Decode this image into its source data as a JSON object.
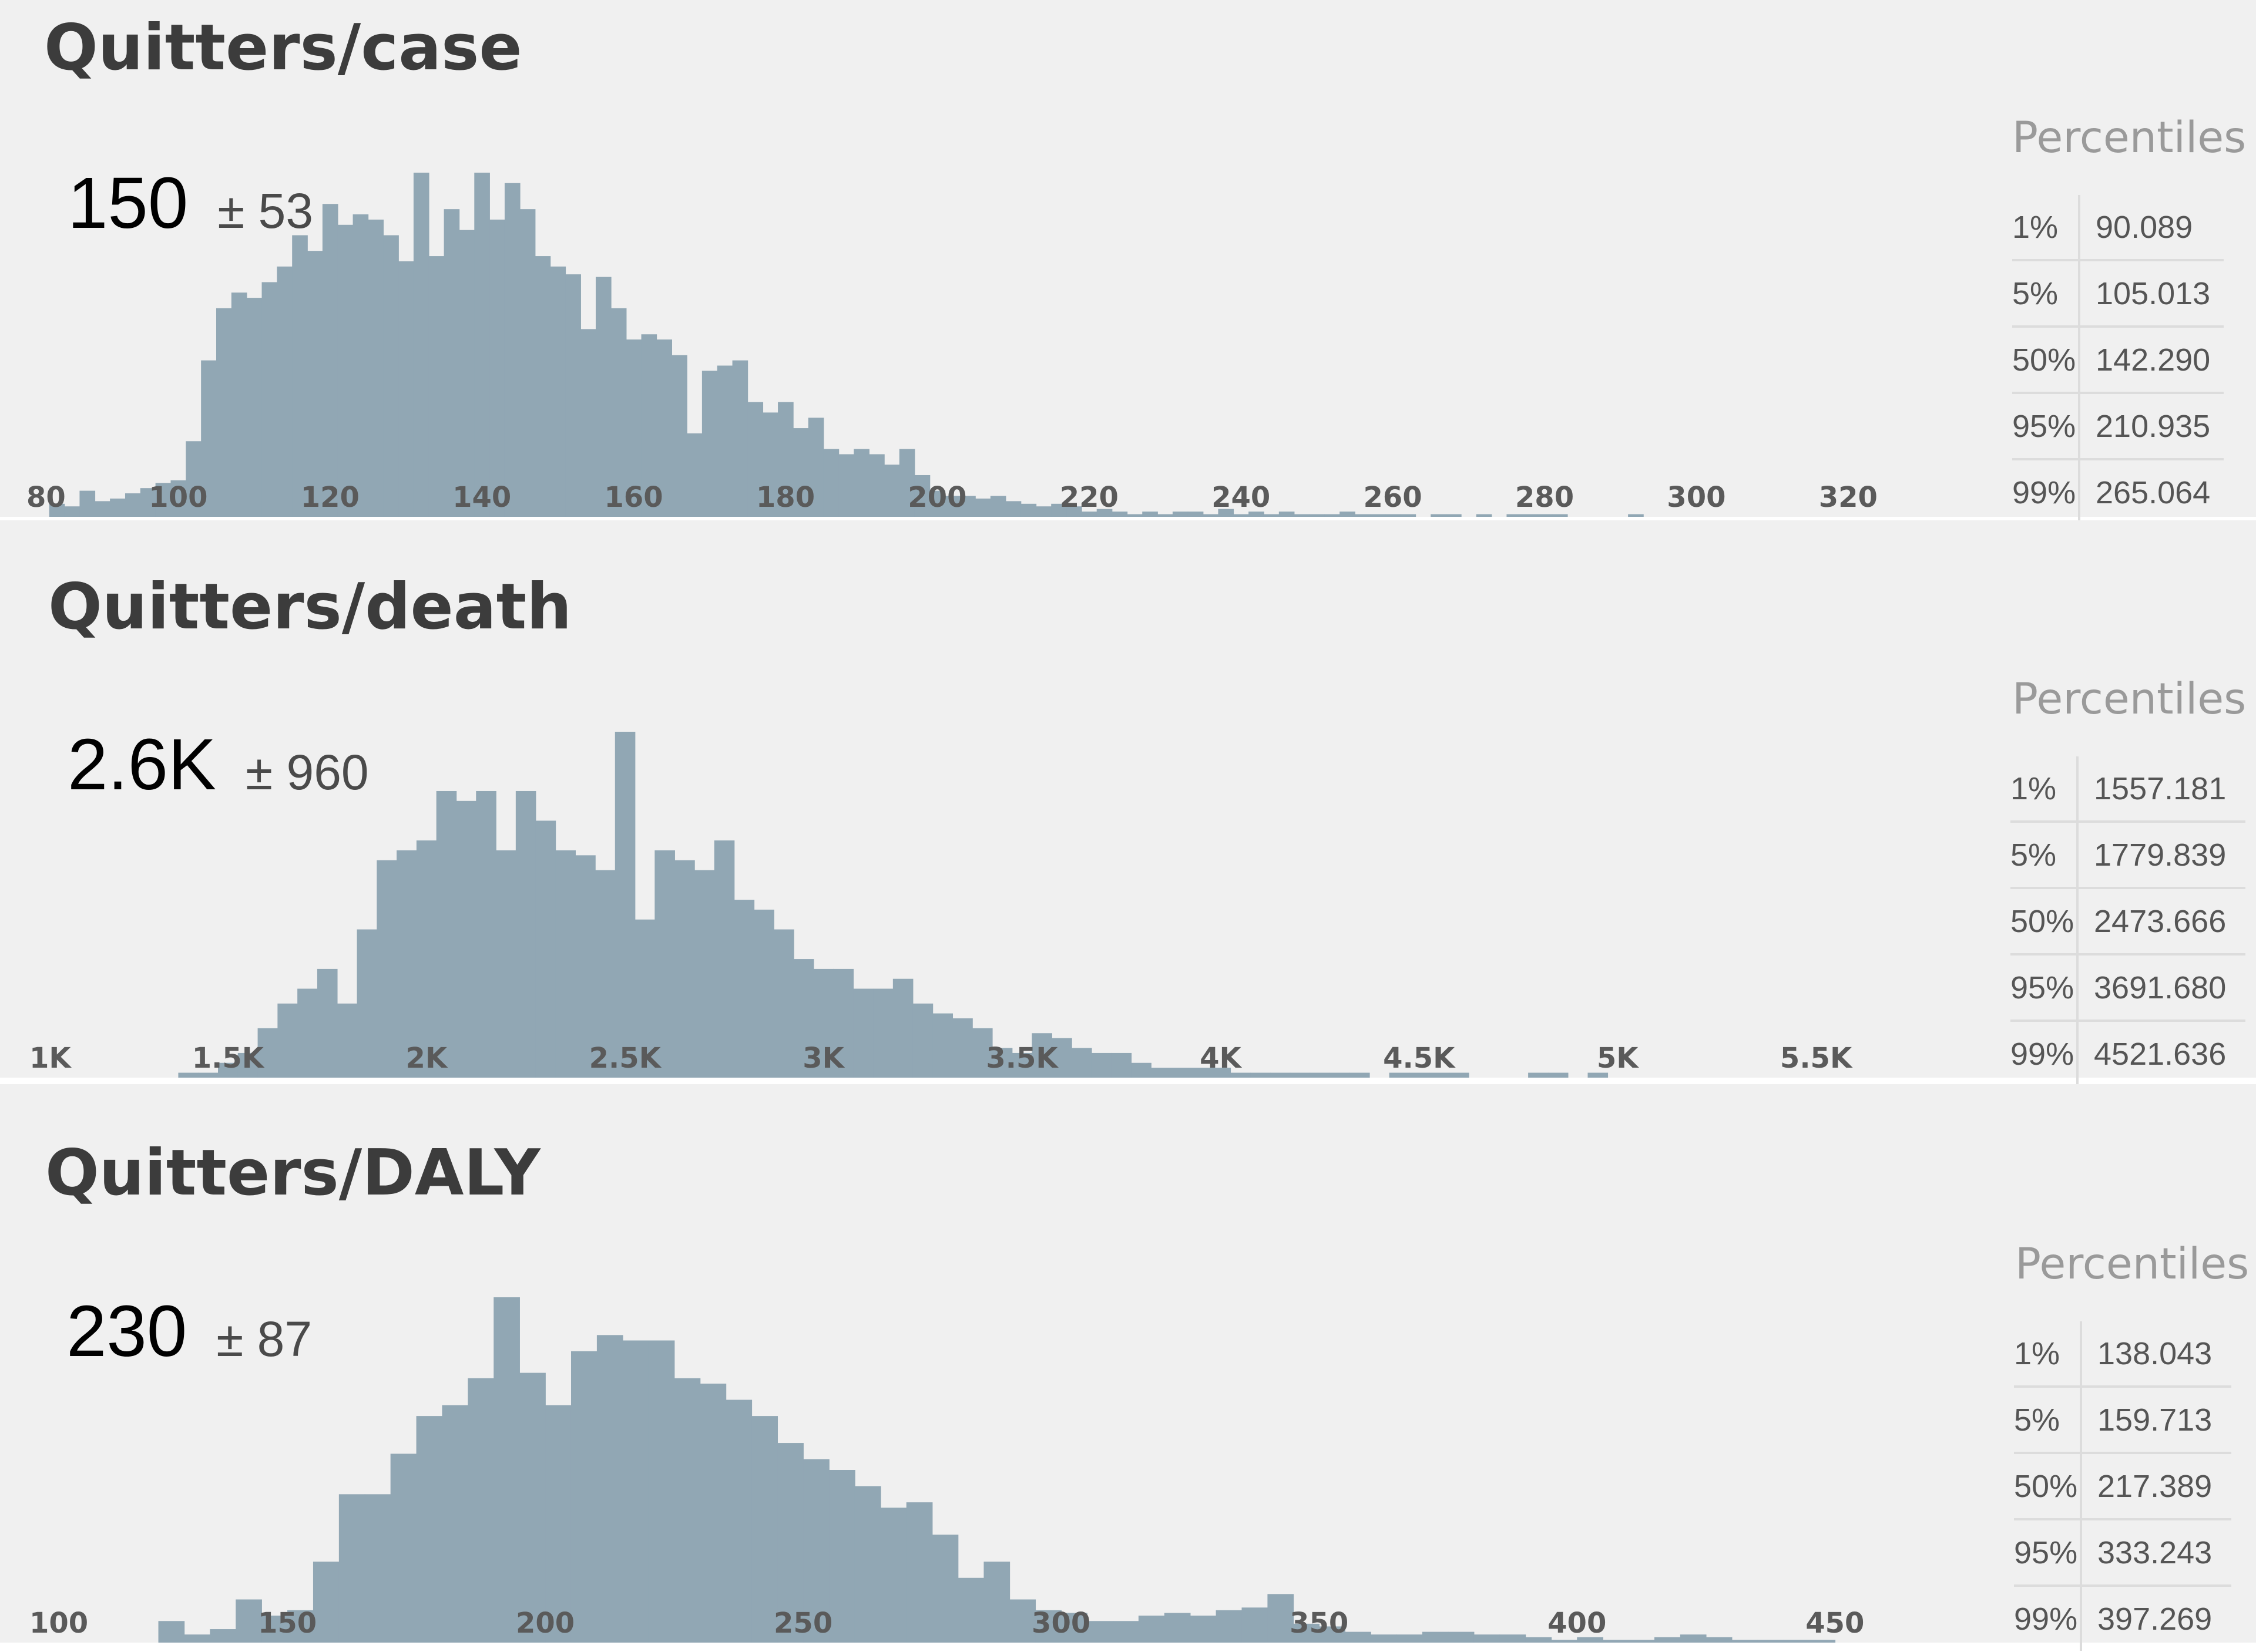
{
  "panels": [
    {
      "title": "Quitters/case",
      "summary": {
        "mean": "150",
        "pm": "± 53"
      },
      "percentiles": {
        "title": "Percentiles",
        "rows": [
          {
            "label": "1%",
            "value": "90.089"
          },
          {
            "label": "5%",
            "value": "105.013"
          },
          {
            "label": "50%",
            "value": "142.290"
          },
          {
            "label": "95%",
            "value": "210.935"
          },
          {
            "label": "99%",
            "value": "265.064"
          }
        ]
      }
    },
    {
      "title": "Quitters/death",
      "summary": {
        "mean": "2.6K",
        "pm": "± 960"
      },
      "percentiles": {
        "title": "Percentiles",
        "rows": [
          {
            "label": "1%",
            "value": "1557.181"
          },
          {
            "label": "5%",
            "value": "1779.839"
          },
          {
            "label": "50%",
            "value": "2473.666"
          },
          {
            "label": "95%",
            "value": "3691.680"
          },
          {
            "label": "99%",
            "value": "4521.636"
          }
        ]
      }
    },
    {
      "title": "Quitters/DALY",
      "summary": {
        "mean": "230",
        "pm": "± 87"
      },
      "percentiles": {
        "title": "Percentiles",
        "rows": [
          {
            "label": "1%",
            "value": "138.043"
          },
          {
            "label": "5%",
            "value": "159.713"
          },
          {
            "label": "50%",
            "value": "217.389"
          },
          {
            "label": "95%",
            "value": "333.243"
          },
          {
            "label": "99%",
            "value": "397.269"
          }
        ]
      }
    }
  ],
  "colors": {
    "bar": "#91a7b4",
    "panel_bg": "#f0f0f0",
    "separator": "#ffffff"
  },
  "chart_data": [
    {
      "type": "bar",
      "title": "Quitters/case",
      "xlabel": "",
      "ylabel": "",
      "xlim": [
        80,
        330
      ],
      "bin_width": 2,
      "bin_start": 83,
      "tick_values": [
        80,
        100,
        120,
        140,
        160,
        180,
        200,
        220,
        240,
        260,
        280,
        300,
        320
      ],
      "tick_labels": [
        "80",
        "100",
        "120",
        "140",
        "160",
        "180",
        "200",
        "220",
        "240",
        "260",
        "280",
        "300",
        "320"
      ],
      "values": [
        5,
        4,
        10,
        6,
        7,
        9,
        11,
        13,
        14,
        29,
        60,
        80,
        86,
        84,
        90,
        96,
        108,
        102,
        120,
        112,
        116,
        114,
        108,
        98,
        132,
        100,
        118,
        110,
        132,
        114,
        128,
        118,
        100,
        96,
        93,
        72,
        92,
        80,
        68,
        70,
        68,
        62,
        32,
        56,
        58,
        60,
        44,
        40,
        44,
        34,
        38,
        26,
        24,
        26,
        24,
        20,
        26,
        16,
        10,
        8,
        8,
        7,
        8,
        6,
        5,
        4,
        5,
        4,
        2,
        3,
        2,
        1,
        2,
        1,
        2,
        2,
        1,
        3,
        1,
        2,
        1,
        2,
        1,
        1,
        1,
        2,
        1,
        1,
        1,
        1,
        0,
        1,
        1,
        0,
        1,
        0,
        1,
        1,
        1,
        1,
        0,
        0,
        0,
        0,
        1,
        0,
        0,
        0,
        0,
        0
      ]
    },
    {
      "type": "bar",
      "title": "Quitters/death",
      "xlabel": "",
      "ylabel": "",
      "xlim": [
        1000,
        5750
      ],
      "bin_width": 50,
      "bin_start": 1375,
      "tick_values": [
        1000,
        1500,
        2000,
        2500,
        3000,
        3500,
        4000,
        4500,
        5000,
        5500
      ],
      "tick_labels": [
        "1K",
        "1.5K",
        "2K",
        "2.5K",
        "3K",
        "3.5K",
        "4K",
        "4.5K",
        "5K",
        "5.5K"
      ],
      "values": [
        1,
        1,
        3,
        5,
        10,
        15,
        18,
        22,
        15,
        30,
        44,
        46,
        48,
        58,
        56,
        58,
        46,
        58,
        52,
        46,
        45,
        42,
        70,
        32,
        46,
        44,
        42,
        48,
        36,
        34,
        30,
        24,
        22,
        22,
        18,
        18,
        20,
        15,
        13,
        12,
        10,
        6,
        5,
        9,
        8,
        6,
        5,
        5,
        3,
        2,
        2,
        2,
        2,
        1,
        1,
        1,
        1,
        1,
        1,
        1,
        0,
        1,
        1,
        1,
        1,
        0,
        0,
        0,
        1,
        1,
        0,
        1,
        0,
        0,
        0,
        0
      ]
    },
    {
      "type": "bar",
      "title": "Quitters/DALY",
      "xlabel": "",
      "ylabel": "",
      "xlim": [
        100,
        465
      ],
      "bin_width": 5,
      "bin_start": 125,
      "tick_values": [
        100,
        150,
        200,
        250,
        300,
        350,
        400,
        450
      ],
      "tick_labels": [
        "100",
        "150",
        "200",
        "250",
        "300",
        "350",
        "400",
        "450"
      ],
      "values": [
        8,
        3,
        5,
        16,
        10,
        12,
        30,
        55,
        55,
        70,
        84,
        88,
        98,
        128,
        100,
        88,
        108,
        114,
        112,
        112,
        98,
        96,
        90,
        84,
        74,
        68,
        64,
        58,
        50,
        52,
        40,
        24,
        30,
        16,
        12,
        11,
        8,
        8,
        10,
        11,
        10,
        12,
        13,
        18,
        7,
        6,
        4,
        3,
        3,
        4,
        4,
        3,
        3,
        2,
        1,
        2,
        1,
        1,
        2,
        3,
        2,
        1,
        1,
        1,
        1,
        0,
        0,
        0,
        0,
        0,
        0,
        0,
        0
      ]
    }
  ]
}
